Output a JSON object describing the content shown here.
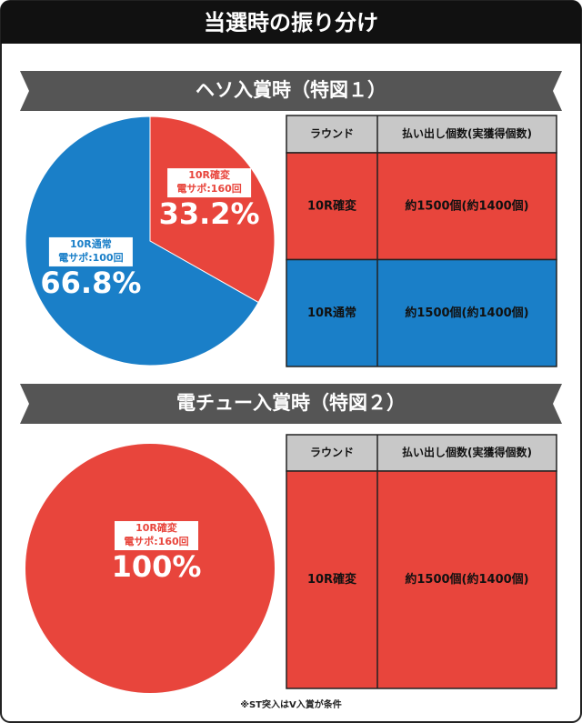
{
  "title": "当選時の振り分け",
  "sections": [
    {
      "heading": "ヘソ入賞時（特図１）",
      "table": {
        "header": [
          "ラウンド",
          "払い出し個数(実獲得個数)"
        ],
        "rows": [
          [
            "10R確変",
            "約1500個(約1400個)"
          ],
          [
            "10R通常",
            "約1500個(約1400個)"
          ]
        ],
        "row_colors": [
          "#e8453c",
          "#1a7fc8"
        ]
      }
    },
    {
      "heading": "電チュー入賞時（特図２）",
      "table": {
        "header": [
          "ラウンド",
          "払い出し個数(実獲得個数)"
        ],
        "rows": [
          [
            "10R確変",
            "約1500個(約1400個)"
          ]
        ],
        "row_colors": [
          "#e8453c"
        ]
      }
    }
  ],
  "chart_data": [
    {
      "type": "pie",
      "categories": [
        "10R確変",
        "10R通常"
      ],
      "sublabels": [
        "電サポ:160回",
        "電サポ:100回"
      ],
      "values": [
        33.2,
        66.8
      ],
      "value_labels": [
        "33.2%",
        "66.8%"
      ],
      "colors": [
        "#e8453c",
        "#1a7fc8"
      ]
    },
    {
      "type": "pie",
      "categories": [
        "10R確変"
      ],
      "sublabels": [
        "電サポ:160回"
      ],
      "values": [
        100
      ],
      "value_labels": [
        "100%"
      ],
      "colors": [
        "#e8453c"
      ]
    }
  ],
  "note": "※ST突入はV入賞が条件"
}
